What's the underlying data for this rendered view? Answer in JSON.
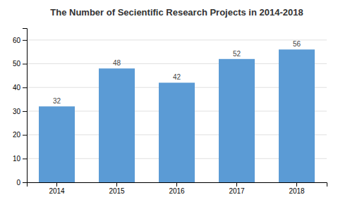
{
  "chart_data": {
    "type": "bar",
    "title": "The Number of Secientific Research Projects in 2014-2018",
    "categories": [
      "2014",
      "2015",
      "2016",
      "2017",
      "2018"
    ],
    "values": [
      32,
      48,
      42,
      52,
      56
    ],
    "color": "#5B9BD5",
    "ylim": [
      0,
      65
    ],
    "yticks": [
      0,
      10,
      20,
      30,
      40,
      50,
      60
    ],
    "grid": true,
    "data_labels": true
  }
}
